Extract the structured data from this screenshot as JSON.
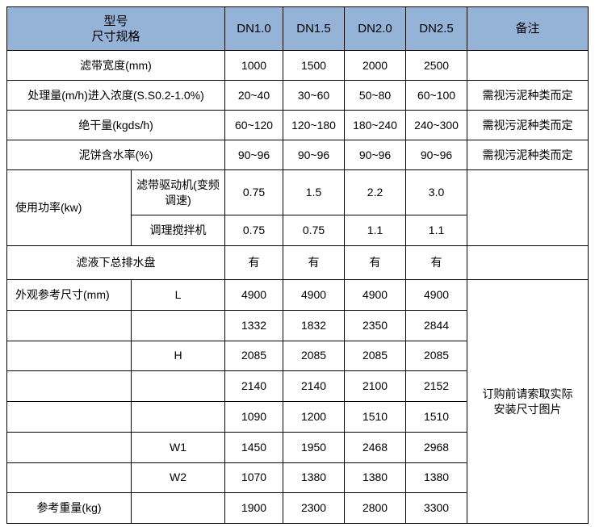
{
  "header": {
    "model_label": "型号",
    "spec_label": "尺寸规格",
    "models": [
      "DN1.0",
      "DN1.5",
      "DN2.0",
      "DN2.5"
    ],
    "remark_label": "备注"
  },
  "rows": [
    {
      "label": "滤带宽度(mm)",
      "values": [
        1000,
        1500,
        2000,
        2500
      ]
    },
    {
      "label": "处理量(m/h)进入浓度(S.S0.2-1.0%)",
      "values": [
        "20~40",
        "30~60",
        "50~80",
        "60~100"
      ],
      "remark": "需视污泥种类而定"
    },
    {
      "label": "绝干量(kgds/h)",
      "values": [
        "60~120",
        "120~180",
        "180~240",
        "240~300"
      ],
      "remark": "需视污泥种类而定"
    },
    {
      "label": "泥饼含水率(%)",
      "values": [
        "90~96",
        "90~96",
        "90~96",
        "90~96"
      ],
      "remark": "需视污泥种类而定"
    },
    {
      "label": "使用功率(kw)",
      "sublabel": "滤带驱动机(变频调速)",
      "values": [
        "0.75",
        "1.5",
        "2.2",
        "3.0"
      ]
    },
    {
      "sublabel": "调理搅拌机",
      "values": [
        0.75,
        0.75,
        1.1,
        1.1
      ]
    },
    {
      "label": "滤液下总排水盘",
      "values": [
        "有",
        "有",
        "有",
        "有"
      ]
    },
    {
      "label": "外观参考尺寸(mm)",
      "sublabel": "L",
      "values": [
        4900,
        4900,
        4900,
        4900
      ],
      "remark": "订购前请索取实际安装尺寸图片"
    },
    {
      "values": [
        1332,
        1832,
        2350,
        2844
      ]
    },
    {
      "sublabel": "H",
      "values": [
        2085,
        2085,
        2085,
        2085
      ]
    },
    {
      "values": [
        2140,
        2140,
        2100,
        2152
      ]
    },
    {
      "values": [
        1090,
        1200,
        1510,
        1510
      ]
    },
    {
      "sublabel": "W1",
      "values": [
        1450,
        1950,
        2468,
        2968
      ]
    },
    {
      "sublabel": "W2",
      "values": [
        1070,
        1380,
        1380,
        1380
      ]
    },
    {
      "label": "参考重量(kg)",
      "values": [
        1900,
        2300,
        2800,
        3300
      ]
    }
  ]
}
